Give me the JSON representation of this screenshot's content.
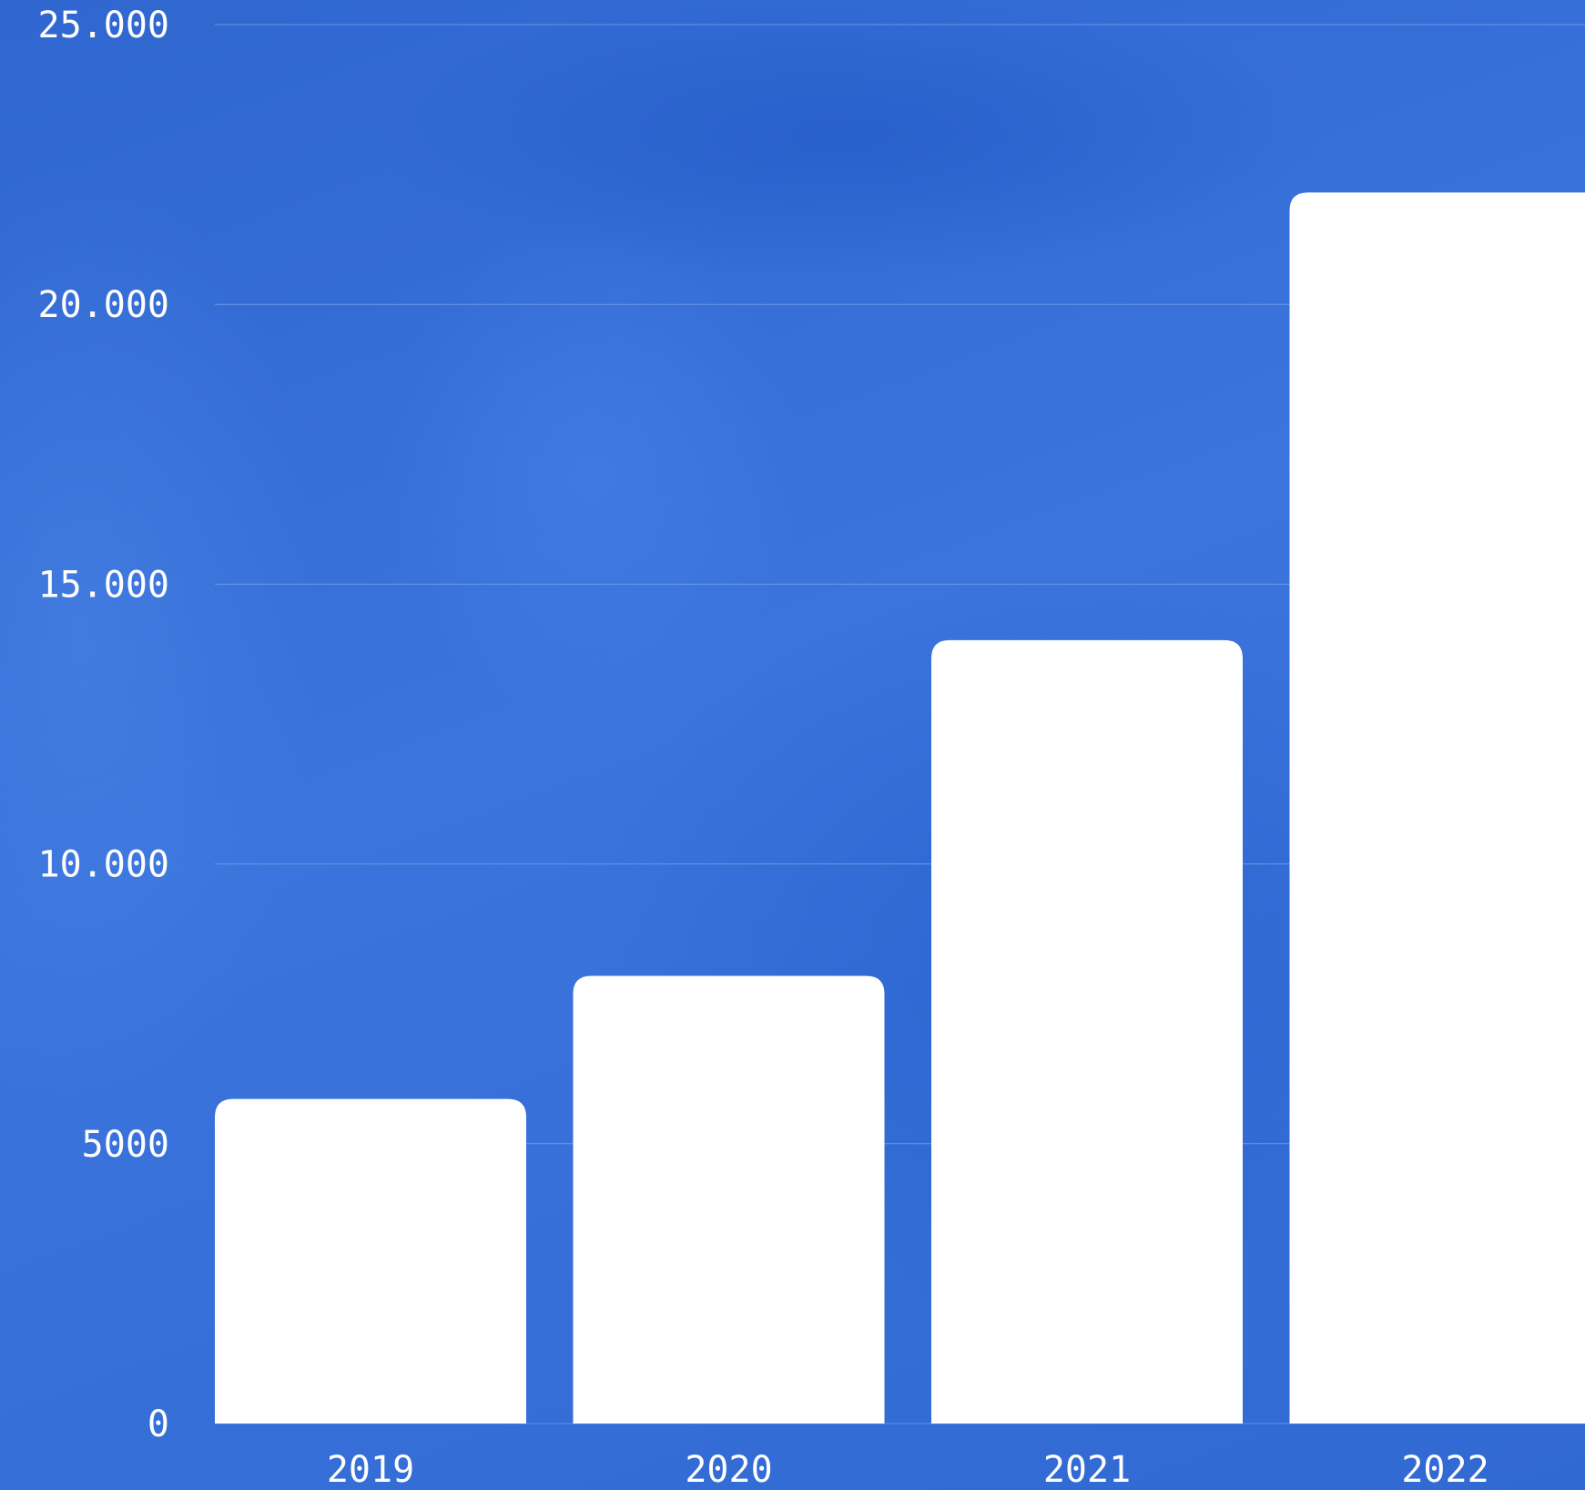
{
  "chart_data": {
    "type": "bar",
    "categories": [
      "2019",
      "2020",
      "2021",
      "2022"
    ],
    "values": [
      5800,
      8000,
      14000,
      22000
    ],
    "yticks": [
      0,
      5000,
      10000,
      15000,
      20000,
      25000
    ],
    "ytick_labels": [
      "0",
      "5000",
      "10.000",
      "15.000",
      "20.000",
      "25.000"
    ],
    "ylim": [
      0,
      25000
    ],
    "grid": true,
    "title": "",
    "xlabel": "",
    "ylabel": "",
    "colors": {
      "background": "#3570d8",
      "bar": "#ffffff",
      "grid": "#7ea6ec",
      "text": "#ffffff"
    }
  }
}
